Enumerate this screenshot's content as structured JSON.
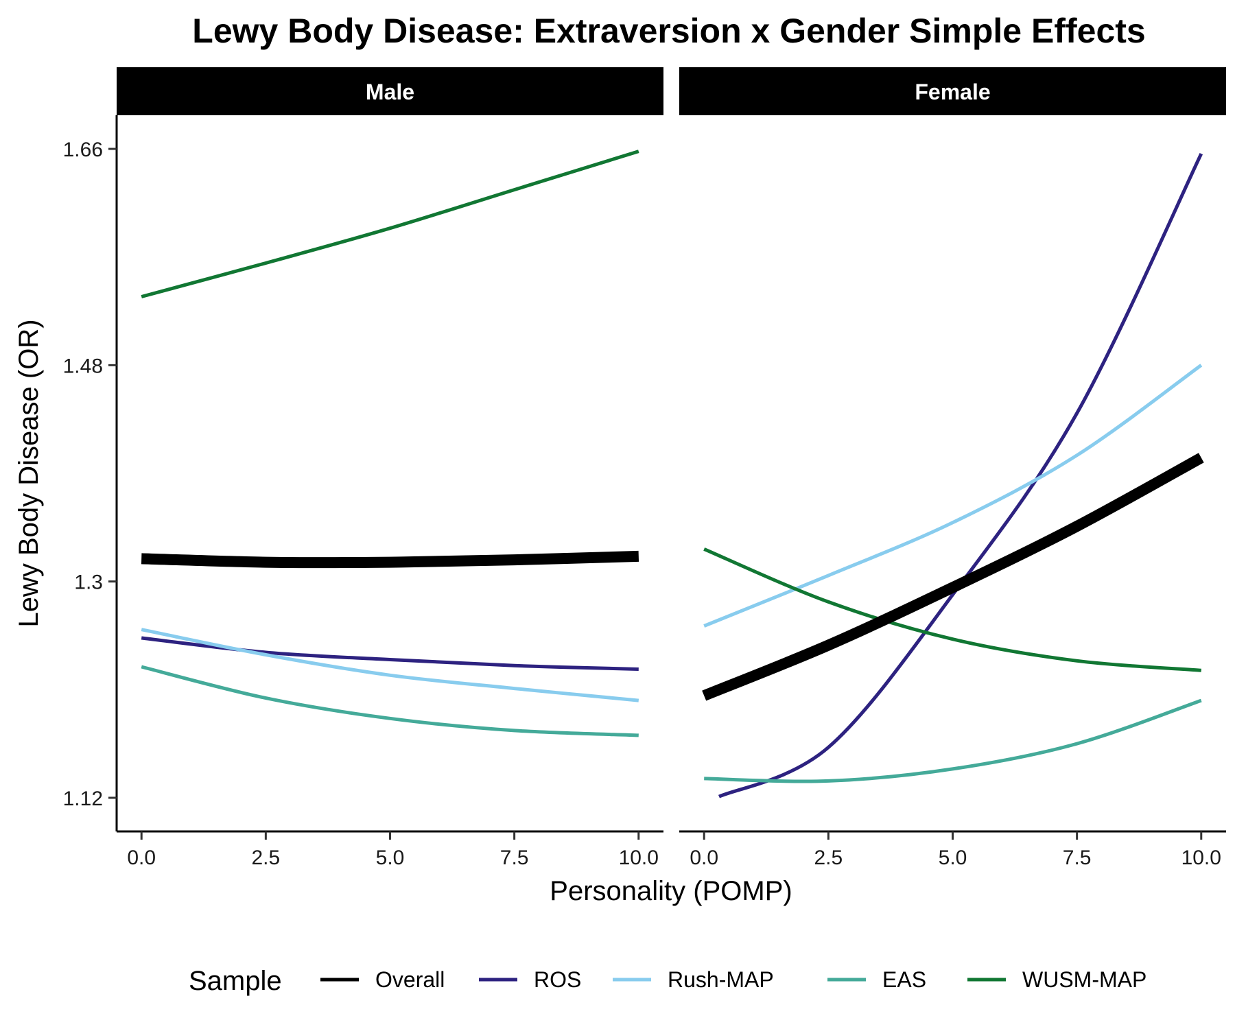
{
  "chart_data": {
    "type": "line",
    "title": "Lewy Body Disease: Extraversion x Gender Simple Effects",
    "xlabel": "Personality (POMP)",
    "ylabel": "Lewy Body Disease (OR)",
    "xlim": [
      -0.5,
      10.5
    ],
    "ylim": [
      1.092,
      1.688
    ],
    "x_ticks": [
      0,
      2.5,
      5,
      7.5,
      10
    ],
    "x_tick_labels": [
      "0.0",
      "2.5",
      "5.0",
      "7.5",
      "10.0"
    ],
    "y_ticks": [
      1.12,
      1.3,
      1.48,
      1.66
    ],
    "y_tick_labels": [
      "1.12",
      "1.3",
      "1.48",
      "1.66"
    ],
    "grid": false,
    "legend": {
      "title": "Sample",
      "placement": "bottom",
      "entries": [
        "Overall",
        "ROS",
        "Rush-MAP",
        "EAS",
        "WUSM-MAP"
      ]
    },
    "x": [
      0,
      2.5,
      5,
      7.5,
      10
    ],
    "panels": [
      {
        "label": "Male",
        "series": [
          {
            "name": "Overall",
            "color": "#000000",
            "width": "thick",
            "x": [
              0,
              2.5,
              5,
              7.5,
              10
            ],
            "values": [
              1.319,
              1.316,
              1.316,
              1.318,
              1.321
            ]
          },
          {
            "name": "ROS",
            "color": "#2d2280",
            "width": "normal",
            "x": [
              0,
              2.5,
              5,
              7.5,
              10
            ],
            "values": [
              1.253,
              1.241,
              1.235,
              1.23,
              1.227
            ]
          },
          {
            "name": "Rush-MAP",
            "color": "#88ccee",
            "width": "normal",
            "x": [
              0,
              2.5,
              5,
              7.5,
              10
            ],
            "values": [
              1.26,
              1.239,
              1.222,
              1.211,
              1.201
            ]
          },
          {
            "name": "EAS",
            "color": "#44aa99",
            "width": "normal",
            "x": [
              0,
              2.5,
              5,
              7.5,
              10
            ],
            "values": [
              1.229,
              1.203,
              1.186,
              1.176,
              1.172
            ]
          },
          {
            "name": "WUSM-MAP",
            "color": "#117733",
            "width": "normal",
            "x": [
              0,
              2.5,
              5,
              7.5,
              10
            ],
            "values": [
              1.537,
              1.565,
              1.594,
              1.626,
              1.658
            ]
          }
        ]
      },
      {
        "label": "Female",
        "series": [
          {
            "name": "Overall",
            "color": "#000000",
            "width": "thick",
            "x": [
              0,
              2.5,
              5,
              7.5,
              10
            ],
            "values": [
              1.205,
              1.247,
              1.295,
              1.346,
              1.403
            ]
          },
          {
            "name": "ROS",
            "color": "#2d2280",
            "width": "normal",
            "x": [
              0.3,
              2.5,
              5,
              7.5,
              10
            ],
            "values": [
              1.121,
              1.162,
              1.289,
              1.44,
              1.656
            ]
          },
          {
            "name": "Rush-MAP",
            "color": "#88ccee",
            "width": "normal",
            "x": [
              0,
              2.5,
              5,
              7.5,
              10
            ],
            "values": [
              1.263,
              1.305,
              1.349,
              1.405,
              1.48
            ]
          },
          {
            "name": "EAS",
            "color": "#44aa99",
            "width": "normal",
            "x": [
              0,
              2.5,
              5,
              7.5,
              10
            ],
            "values": [
              1.136,
              1.134,
              1.144,
              1.165,
              1.201
            ]
          },
          {
            "name": "WUSM-MAP",
            "color": "#117733",
            "width": "normal",
            "x": [
              0,
              2.5,
              5,
              7.5,
              10
            ],
            "values": [
              1.327,
              1.283,
              1.252,
              1.234,
              1.226
            ]
          }
        ]
      }
    ]
  }
}
